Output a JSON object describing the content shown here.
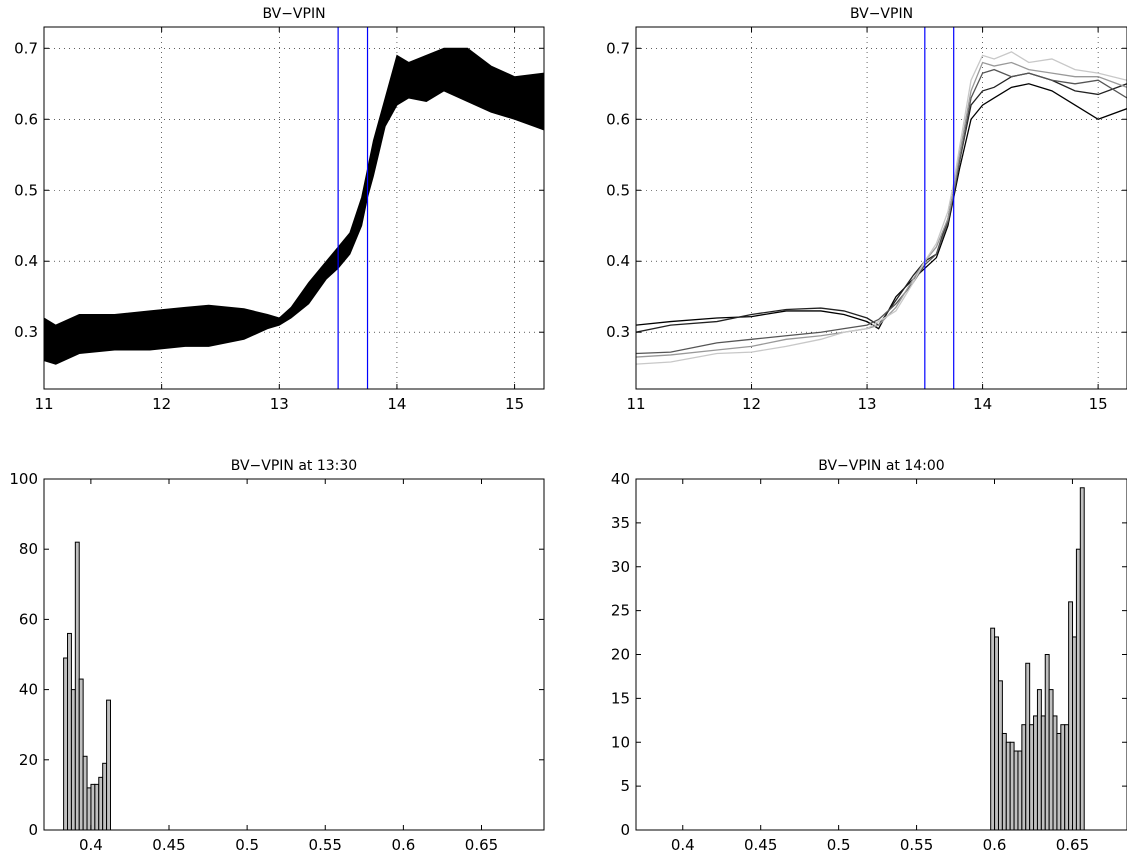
{
  "chart_data": [
    {
      "type": "area",
      "title": "BV−VPIN",
      "xlabel": "",
      "ylabel": "",
      "xlim": [
        11,
        15.25
      ],
      "ylim": [
        0.22,
        0.73
      ],
      "xticks": [
        "11",
        "12",
        "13",
        "14",
        "15"
      ],
      "yticks": [
        "0.3",
        "0.4",
        "0.5",
        "0.6",
        "0.7"
      ],
      "grid": true,
      "vlines": [
        13.5,
        13.75
      ],
      "vline_color": "#0000ff",
      "fill_color": "#000000",
      "x": [
        11.0,
        11.1,
        11.3,
        11.6,
        11.9,
        12.2,
        12.4,
        12.7,
        12.9,
        13.0,
        13.1,
        13.25,
        13.4,
        13.5,
        13.6,
        13.7,
        13.75,
        13.8,
        13.9,
        14.0,
        14.1,
        14.25,
        14.4,
        14.6,
        14.8,
        15.0,
        15.25
      ],
      "upper": [
        0.32,
        0.31,
        0.325,
        0.325,
        0.33,
        0.335,
        0.338,
        0.333,
        0.325,
        0.32,
        0.335,
        0.37,
        0.4,
        0.42,
        0.44,
        0.49,
        0.53,
        0.57,
        0.63,
        0.69,
        0.68,
        0.69,
        0.7,
        0.7,
        0.675,
        0.66,
        0.665
      ],
      "lower": [
        0.26,
        0.255,
        0.27,
        0.275,
        0.275,
        0.28,
        0.28,
        0.29,
        0.305,
        0.31,
        0.32,
        0.34,
        0.375,
        0.39,
        0.41,
        0.45,
        0.49,
        0.52,
        0.59,
        0.62,
        0.63,
        0.625,
        0.64,
        0.625,
        0.61,
        0.6,
        0.585
      ]
    },
    {
      "type": "line",
      "title": "BV−VPIN",
      "xlabel": "",
      "ylabel": "",
      "xlim": [
        11,
        15.25
      ],
      "ylim": [
        0.22,
        0.73
      ],
      "xticks": [
        "11",
        "12",
        "13",
        "14",
        "15"
      ],
      "yticks": [
        "0.3",
        "0.4",
        "0.5",
        "0.6",
        "0.7"
      ],
      "grid": true,
      "vlines": [
        13.5,
        13.75
      ],
      "vline_color": "#0000ff",
      "x": [
        11.0,
        11.3,
        11.7,
        12.0,
        12.3,
        12.6,
        12.8,
        13.0,
        13.1,
        13.25,
        13.4,
        13.5,
        13.6,
        13.7,
        13.75,
        13.8,
        13.9,
        14.0,
        14.1,
        14.25,
        14.4,
        14.6,
        14.8,
        15.0,
        15.25
      ],
      "series": [
        {
          "color": "#000000",
          "values": [
            0.31,
            0.315,
            0.32,
            0.322,
            0.33,
            0.33,
            0.325,
            0.315,
            0.305,
            0.35,
            0.375,
            0.39,
            0.405,
            0.45,
            0.49,
            0.53,
            0.6,
            0.62,
            0.63,
            0.645,
            0.65,
            0.64,
            0.62,
            0.6,
            0.615
          ]
        },
        {
          "color": "#222222",
          "values": [
            0.3,
            0.31,
            0.315,
            0.325,
            0.332,
            0.334,
            0.33,
            0.32,
            0.31,
            0.345,
            0.38,
            0.4,
            0.41,
            0.46,
            0.5,
            0.54,
            0.62,
            0.64,
            0.645,
            0.66,
            0.665,
            0.655,
            0.64,
            0.635,
            0.65
          ]
        },
        {
          "color": "#555555",
          "values": [
            0.27,
            0.272,
            0.285,
            0.29,
            0.295,
            0.3,
            0.305,
            0.31,
            0.318,
            0.34,
            0.37,
            0.395,
            0.41,
            0.455,
            0.495,
            0.54,
            0.63,
            0.665,
            0.67,
            0.66,
            0.665,
            0.655,
            0.65,
            0.655,
            0.63
          ]
        },
        {
          "color": "#999999",
          "values": [
            0.265,
            0.268,
            0.275,
            0.28,
            0.29,
            0.295,
            0.3,
            0.305,
            0.31,
            0.335,
            0.375,
            0.4,
            0.42,
            0.46,
            0.5,
            0.55,
            0.64,
            0.68,
            0.675,
            0.68,
            0.67,
            0.665,
            0.66,
            0.66,
            0.645
          ]
        },
        {
          "color": "#c8c8c8",
          "values": [
            0.255,
            0.258,
            0.27,
            0.272,
            0.28,
            0.29,
            0.3,
            0.305,
            0.315,
            0.33,
            0.37,
            0.4,
            0.425,
            0.47,
            0.51,
            0.56,
            0.655,
            0.69,
            0.685,
            0.695,
            0.68,
            0.685,
            0.67,
            0.665,
            0.655
          ]
        }
      ]
    },
    {
      "type": "bar",
      "title": "BV−VPIN at 13:30",
      "xlabel": "",
      "ylabel": "",
      "xlim": [
        0.37,
        0.69
      ],
      "ylim": [
        0,
        100
      ],
      "xticks": [
        "0.4",
        "0.45",
        "0.5",
        "0.55",
        "0.6",
        "0.65"
      ],
      "yticks": [
        "0",
        "20",
        "40",
        "60",
        "80",
        "100"
      ],
      "grid": false,
      "bar_color": "#c0c0c0",
      "bin_width": 0.0025,
      "bin_centers": [
        0.3838,
        0.3863,
        0.3888,
        0.3913,
        0.3938,
        0.3963,
        0.3988,
        0.4013,
        0.4038,
        0.4063,
        0.4088,
        0.4113,
        0.4138
      ],
      "values": [
        49,
        56,
        40,
        82,
        43,
        21,
        12,
        13,
        13,
        15,
        19,
        37,
        0
      ]
    },
    {
      "type": "bar",
      "title": "BV−VPIN at 14:00",
      "xlabel": "",
      "ylabel": "",
      "xlim": [
        0.37,
        0.685
      ],
      "ylim": [
        0,
        40
      ],
      "xticks": [
        "0.4",
        "0.45",
        "0.5",
        "0.55",
        "0.6",
        "0.65"
      ],
      "yticks": [
        "0",
        "5",
        "10",
        "15",
        "20",
        "25",
        "30",
        "35",
        "40"
      ],
      "grid": false,
      "bar_color": "#c0c0c0",
      "bin_width": 0.0025,
      "bin_centers": [
        0.5988,
        0.6013,
        0.6038,
        0.6063,
        0.6088,
        0.6113,
        0.6138,
        0.6163,
        0.6188,
        0.6213,
        0.6238,
        0.6263,
        0.6288,
        0.6313,
        0.6338,
        0.6363,
        0.6388,
        0.6413,
        0.6438,
        0.6463,
        0.6488,
        0.6513,
        0.6538,
        0.6563,
        0.6588,
        0.6613,
        0.6638,
        0.6663,
        0.6688,
        0.6713,
        0.6738,
        0.6763
      ],
      "values": [
        23,
        22,
        17,
        11,
        10,
        10,
        9,
        9,
        12,
        19,
        12,
        13,
        16,
        13,
        20,
        16,
        13,
        11,
        12,
        12,
        26,
        22,
        32,
        39,
        0,
        0,
        0,
        0,
        0,
        0,
        0,
        0
      ]
    }
  ]
}
